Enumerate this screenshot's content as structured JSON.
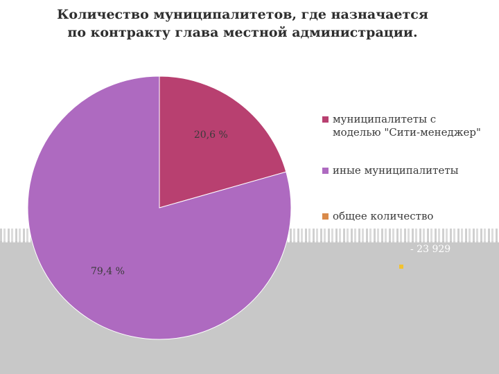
{
  "chart_data": {
    "type": "pie",
    "title_lines": [
      "Количество муниципалитетов, где назначается",
      "по контракту глава местной администрации."
    ],
    "slices": [
      {
        "label": "муниципалитеты с моделью \"Сити-менеджер\"",
        "value": 20.6,
        "display": "20,6 %",
        "color": "#b84070"
      },
      {
        "label": "иные муниципалитеты",
        "value": 79.4,
        "display": "79,4 %",
        "color": "#ae6ac0"
      }
    ],
    "extra_legend": {
      "label": "общее количество",
      "color": "#d98a4a"
    },
    "note_text": "- 23 929",
    "note_color": "#f2c230"
  }
}
